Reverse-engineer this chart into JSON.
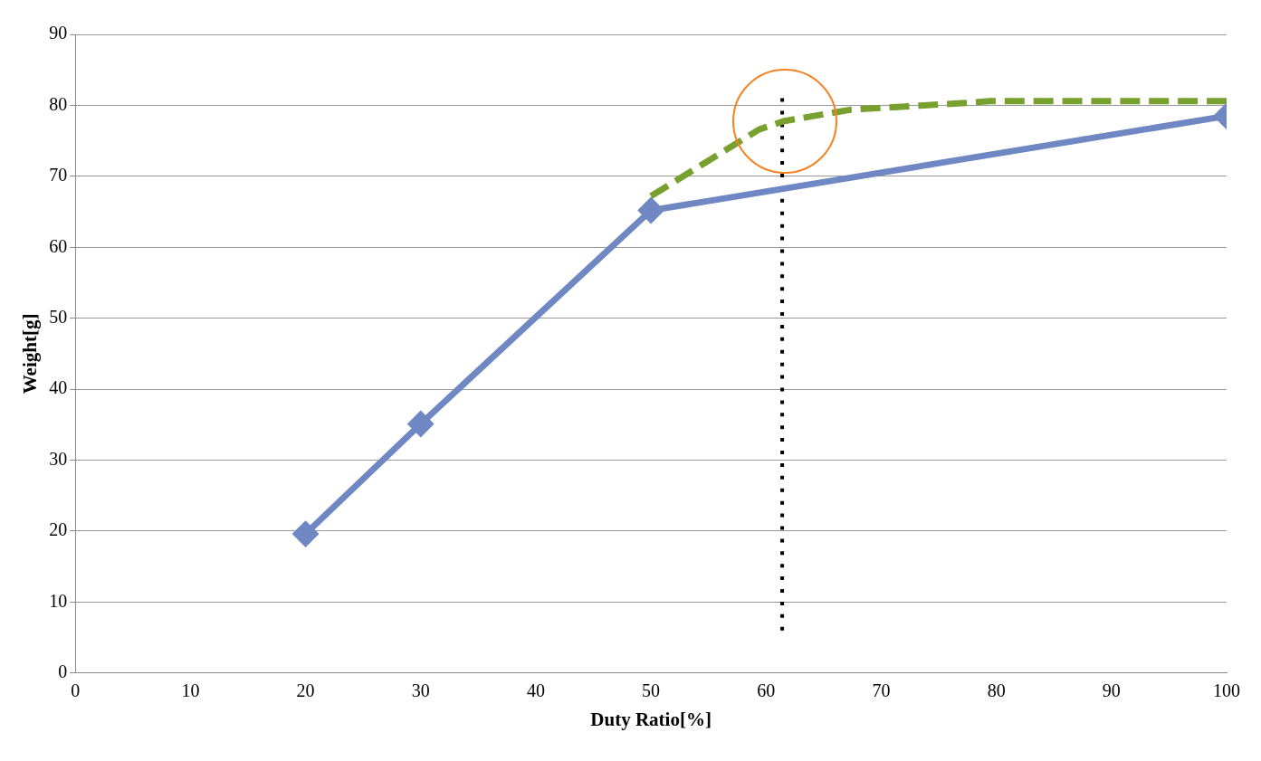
{
  "chart_data": {
    "type": "line",
    "xlabel": "Duty Ratio[%]",
    "ylabel": "Weight[g]",
    "xlim": [
      0,
      100
    ],
    "xticks": [
      0,
      10,
      20,
      30,
      40,
      50,
      60,
      70,
      80,
      90,
      100
    ],
    "ylim": [
      0,
      90
    ],
    "yticks": [
      0,
      10,
      20,
      30,
      40,
      50,
      60,
      70,
      80,
      90
    ],
    "grid": "y",
    "legend": false,
    "series": [
      {
        "color": "#6f88c4",
        "x": [
          20,
          30,
          50,
          100
        ],
        "values": [
          19.6,
          35.1,
          65.2,
          78.5
        ],
        "marker": "diamond",
        "line_style": "solid"
      },
      {
        "color": "#77a02e",
        "x": [
          50,
          59.4,
          61.6,
          67.4,
          77,
          79.4,
          100
        ],
        "values": [
          67.2,
          76.6,
          77.8,
          79.4,
          80.3,
          80.6,
          80.6
        ],
        "marker": "none",
        "line_style": "dashed"
      },
      {
        "color": "#000000",
        "x": [
          61.4,
          61.4
        ],
        "values": [
          6,
          81
        ],
        "marker": "none",
        "line_style": "dotted"
      }
    ]
  }
}
